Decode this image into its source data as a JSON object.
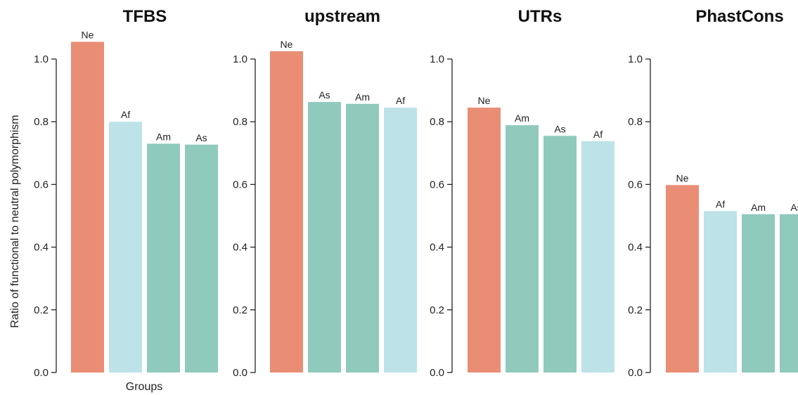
{
  "chart_data": {
    "type": "bar",
    "ylabel": "Ratio of functional to neutral polymorphism",
    "xlabel": "Groups",
    "ylim": [
      0,
      1.0
    ],
    "yticks": [
      "0.0",
      "0.2",
      "0.4",
      "0.6",
      "0.8",
      "1.0"
    ],
    "grid": false,
    "colors": {
      "Ne": "#e98e75",
      "Af": "#bde2e8",
      "Am": "#8fcabd",
      "As": "#8fcabd"
    },
    "panels": [
      {
        "title": "TFBS",
        "categories": [
          "Ne",
          "Af",
          "Am",
          "As"
        ],
        "values": [
          1.055,
          0.8,
          0.73,
          0.727
        ],
        "colors": [
          "#e98e75",
          "#bde2e8",
          "#8fcabd",
          "#8fcabd"
        ]
      },
      {
        "title": "upstream",
        "categories": [
          "Ne",
          "As",
          "Am",
          "Af"
        ],
        "values": [
          1.025,
          0.863,
          0.857,
          0.845
        ],
        "colors": [
          "#e98e75",
          "#8fcabd",
          "#8fcabd",
          "#bde2e8"
        ]
      },
      {
        "title": "UTRs",
        "categories": [
          "Ne",
          "Am",
          "As",
          "Af"
        ],
        "values": [
          0.845,
          0.789,
          0.755,
          0.738
        ],
        "colors": [
          "#e98e75",
          "#8fcabd",
          "#8fcabd",
          "#bde2e8"
        ]
      },
      {
        "title": "PhastCons",
        "categories": [
          "Ne",
          "Af",
          "Am",
          "As"
        ],
        "values": [
          0.598,
          0.515,
          0.505,
          0.505
        ],
        "colors": [
          "#e98e75",
          "#bde2e8",
          "#8fcabd",
          "#8fcabd"
        ]
      }
    ]
  }
}
